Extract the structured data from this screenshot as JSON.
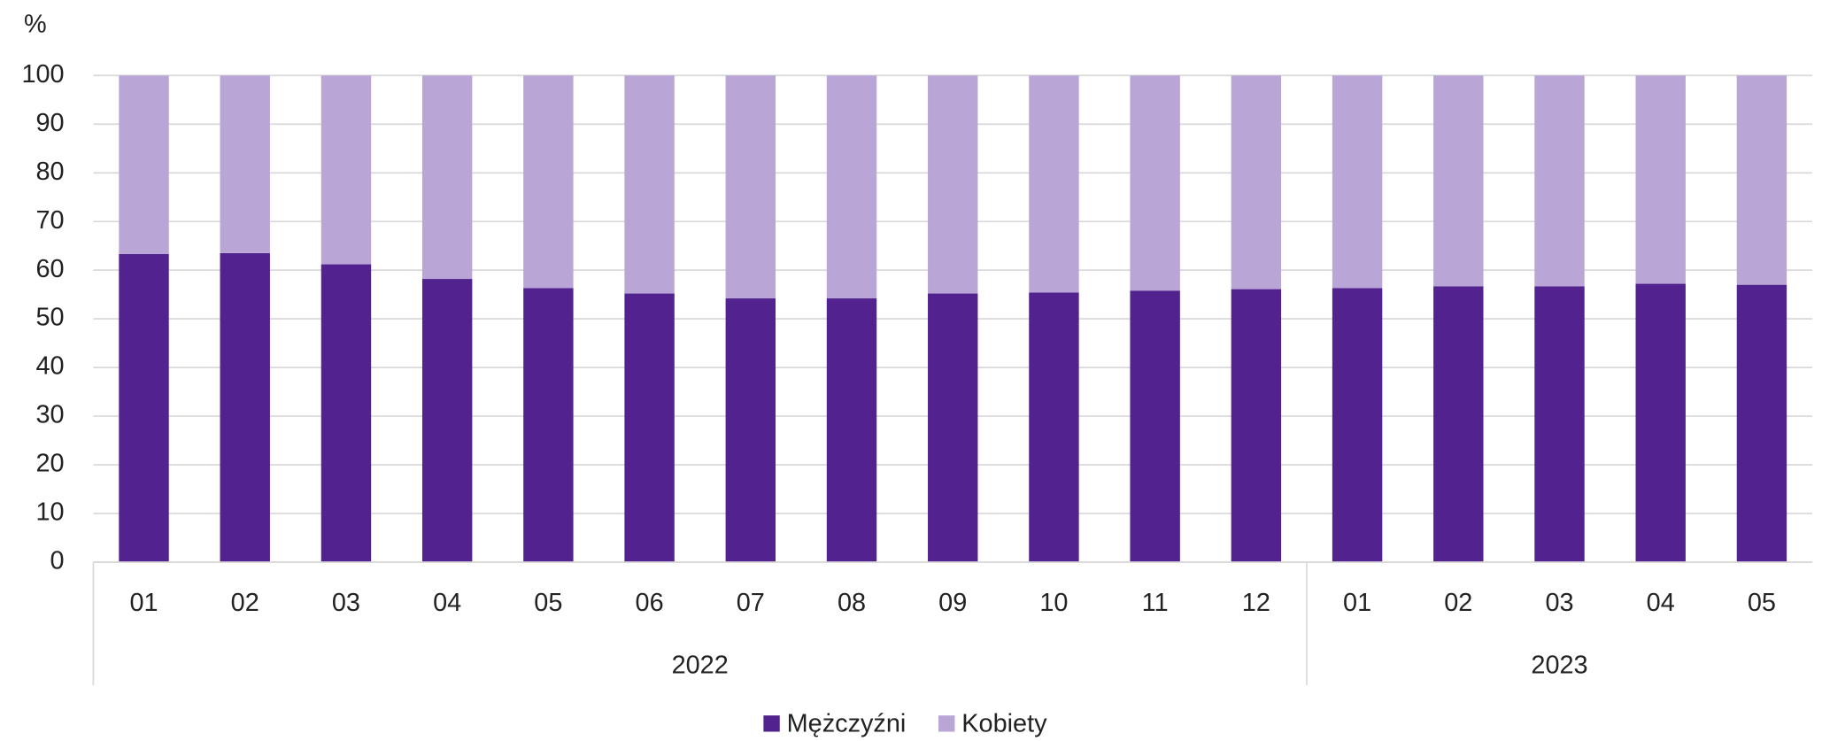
{
  "chart_data": {
    "type": "stacked_bar",
    "y_label": "%",
    "categories": [
      "01",
      "02",
      "03",
      "04",
      "05",
      "06",
      "07",
      "08",
      "09",
      "10",
      "11",
      "12",
      "01",
      "02",
      "03",
      "04",
      "05"
    ],
    "category_groups": [
      {
        "label": "2022",
        "count": 12
      },
      {
        "label": "2023",
        "count": 5
      }
    ],
    "series": [
      {
        "name": "Mężczyźni",
        "color": "#52238f",
        "values": [
          63.3,
          63.5,
          61.2,
          58.2,
          56.3,
          55.2,
          54.2,
          54.2,
          55.2,
          55.4,
          55.8,
          56.1,
          56.3,
          56.7,
          56.7,
          57.2,
          57.0
        ]
      },
      {
        "name": "Kobiety",
        "color": "#b9a6d6",
        "values": [
          36.7,
          36.5,
          38.8,
          41.8,
          43.7,
          44.8,
          45.8,
          45.8,
          44.8,
          44.6,
          44.2,
          43.9,
          43.7,
          43.3,
          43.3,
          42.8,
          43.0
        ]
      }
    ],
    "ylim": [
      0,
      100
    ],
    "yticks": [
      0,
      10,
      20,
      30,
      40,
      50,
      60,
      70,
      80,
      90,
      100
    ],
    "grid": true,
    "legend": "bottom"
  }
}
